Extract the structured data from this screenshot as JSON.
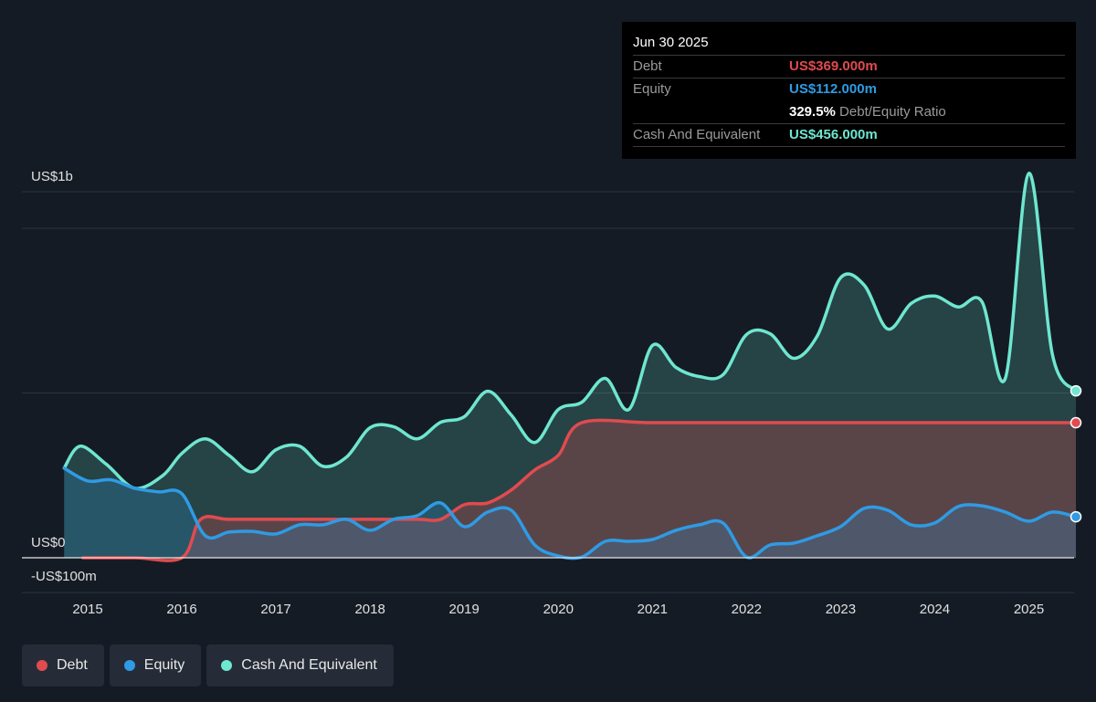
{
  "tooltip": {
    "date": "Jun 30 2025",
    "debt_label": "Debt",
    "debt_value": "US$369.000m",
    "equity_label": "Equity",
    "equity_value": "US$112.000m",
    "ratio_value": "329.5%",
    "ratio_label": "Debt/Equity Ratio",
    "cash_label": "Cash And Equivalent",
    "cash_value": "US$456.000m"
  },
  "legend": [
    {
      "label": "Debt",
      "color": "#e04b4f"
    },
    {
      "label": "Equity",
      "color": "#2f9be4"
    },
    {
      "label": "Cash And Equivalent",
      "color": "#6ee6d0"
    }
  ],
  "chart_data": {
    "type": "area",
    "y_top_label": "US$1b",
    "y_zero_label": "US$0",
    "y_bottom_label": "-US$100m",
    "ylim": [
      -100,
      1100
    ],
    "x_ticks": [
      "2015",
      "2016",
      "2017",
      "2018",
      "2019",
      "2020",
      "2021",
      "2022",
      "2023",
      "2024",
      "2025"
    ],
    "colors": {
      "debt": "#e04b4f",
      "equity": "#2f9be4",
      "cash": "#6ee6d0"
    },
    "series": [
      {
        "name": "Cash And Equivalent",
        "key": "cash",
        "points": [
          [
            2014.75,
            245
          ],
          [
            2014.92,
            305
          ],
          [
            2015.2,
            255
          ],
          [
            2015.5,
            190
          ],
          [
            2015.8,
            225
          ],
          [
            2016.0,
            285
          ],
          [
            2016.25,
            325
          ],
          [
            2016.5,
            280
          ],
          [
            2016.75,
            235
          ],
          [
            2017.0,
            295
          ],
          [
            2017.25,
            305
          ],
          [
            2017.5,
            250
          ],
          [
            2017.75,
            275
          ],
          [
            2018.0,
            355
          ],
          [
            2018.25,
            358
          ],
          [
            2018.5,
            325
          ],
          [
            2018.75,
            370
          ],
          [
            2019.0,
            385
          ],
          [
            2019.25,
            455
          ],
          [
            2019.5,
            390
          ],
          [
            2019.75,
            315
          ],
          [
            2020.0,
            405
          ],
          [
            2020.25,
            425
          ],
          [
            2020.5,
            490
          ],
          [
            2020.75,
            405
          ],
          [
            2021.0,
            580
          ],
          [
            2021.25,
            520
          ],
          [
            2021.5,
            495
          ],
          [
            2021.75,
            500
          ],
          [
            2022.0,
            610
          ],
          [
            2022.25,
            612
          ],
          [
            2022.5,
            545
          ],
          [
            2022.75,
            605
          ],
          [
            2023.0,
            765
          ],
          [
            2023.25,
            745
          ],
          [
            2023.5,
            625
          ],
          [
            2023.75,
            695
          ],
          [
            2024.0,
            715
          ],
          [
            2024.25,
            685
          ],
          [
            2024.5,
            700
          ],
          [
            2024.75,
            490
          ],
          [
            2025.0,
            1050
          ],
          [
            2025.25,
            555
          ],
          [
            2025.5,
            456
          ]
        ]
      },
      {
        "name": "Debt",
        "key": "debt",
        "points": [
          [
            2014.95,
            0
          ],
          [
            2015.5,
            0
          ],
          [
            2016.0,
            0
          ],
          [
            2016.2,
            105
          ],
          [
            2016.5,
            105
          ],
          [
            2017.0,
            105
          ],
          [
            2017.5,
            105
          ],
          [
            2018.0,
            105
          ],
          [
            2018.5,
            105
          ],
          [
            2018.75,
            105
          ],
          [
            2019.0,
            145
          ],
          [
            2019.25,
            150
          ],
          [
            2019.5,
            185
          ],
          [
            2019.75,
            240
          ],
          [
            2020.0,
            280
          ],
          [
            2020.25,
            369
          ],
          [
            2021.0,
            369
          ],
          [
            2022.0,
            369
          ],
          [
            2023.0,
            369
          ],
          [
            2024.0,
            369
          ],
          [
            2025.0,
            369
          ],
          [
            2025.5,
            369
          ]
        ]
      },
      {
        "name": "Equity",
        "key": "equity",
        "points": [
          [
            2014.75,
            245
          ],
          [
            2015.0,
            210
          ],
          [
            2015.25,
            213
          ],
          [
            2015.5,
            190
          ],
          [
            2015.75,
            180
          ],
          [
            2016.0,
            175
          ],
          [
            2016.25,
            60
          ],
          [
            2016.5,
            70
          ],
          [
            2016.75,
            72
          ],
          [
            2017.0,
            65
          ],
          [
            2017.25,
            90
          ],
          [
            2017.5,
            90
          ],
          [
            2017.75,
            105
          ],
          [
            2018.0,
            75
          ],
          [
            2018.25,
            105
          ],
          [
            2018.5,
            115
          ],
          [
            2018.75,
            150
          ],
          [
            2019.0,
            85
          ],
          [
            2019.25,
            125
          ],
          [
            2019.5,
            130
          ],
          [
            2019.75,
            35
          ],
          [
            2020.0,
            5
          ],
          [
            2020.25,
            2
          ],
          [
            2020.5,
            45
          ],
          [
            2020.75,
            45
          ],
          [
            2021.0,
            50
          ],
          [
            2021.25,
            75
          ],
          [
            2021.5,
            90
          ],
          [
            2021.75,
            95
          ],
          [
            2022.0,
            2
          ],
          [
            2022.25,
            35
          ],
          [
            2022.5,
            40
          ],
          [
            2022.75,
            60
          ],
          [
            2023.0,
            85
          ],
          [
            2023.25,
            135
          ],
          [
            2023.5,
            130
          ],
          [
            2023.75,
            90
          ],
          [
            2024.0,
            95
          ],
          [
            2024.25,
            140
          ],
          [
            2024.5,
            142
          ],
          [
            2024.75,
            125
          ],
          [
            2025.0,
            100
          ],
          [
            2025.25,
            125
          ],
          [
            2025.5,
            112
          ]
        ]
      }
    ]
  }
}
